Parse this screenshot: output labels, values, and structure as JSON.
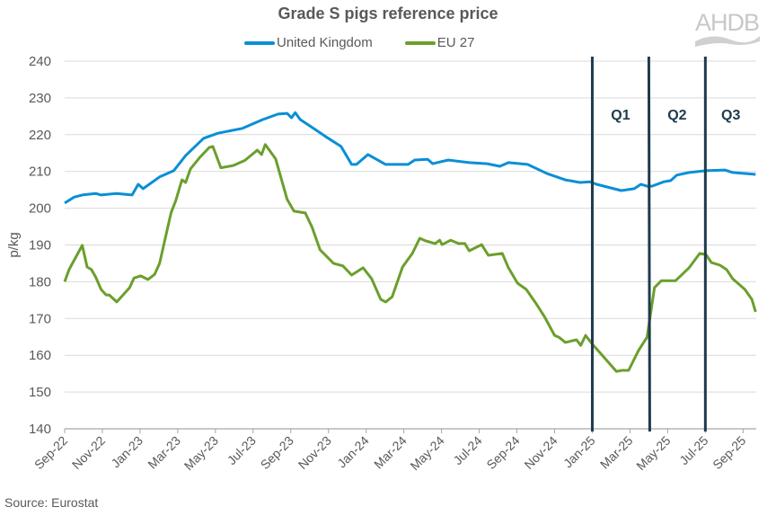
{
  "chart_data": {
    "type": "line",
    "title": "Grade S pigs reference price",
    "ylabel": "p/kg",
    "xlabel": "",
    "ylim": [
      140,
      240
    ],
    "yticks": [
      140,
      150,
      160,
      170,
      180,
      190,
      200,
      210,
      220,
      230,
      240
    ],
    "xlim": [
      "2022-09-01",
      "2025-09-22"
    ],
    "xtick_labels": [
      "Sep-22",
      "Nov-22",
      "Jan-23",
      "Mar-23",
      "May-23",
      "Jul-23",
      "Sep-23",
      "Nov-23",
      "Jan-24",
      "Mar-24",
      "May-24",
      "Jul-24",
      "Sep-24",
      "Nov-24",
      "Jan-25",
      "Mar-25",
      "May-25",
      "Jul-25",
      "Sep-25"
    ],
    "xtick_dates": [
      "2022-09-01",
      "2022-11-01",
      "2023-01-01",
      "2023-03-01",
      "2023-05-01",
      "2023-07-01",
      "2023-09-01",
      "2023-11-01",
      "2024-01-01",
      "2024-03-01",
      "2024-05-01",
      "2024-07-01",
      "2024-09-01",
      "2024-11-01",
      "2025-01-01",
      "2025-03-01",
      "2025-05-01",
      "2025-07-01",
      "2025-09-01"
    ],
    "grid": "horizontal",
    "legend_position": "top",
    "series": [
      {
        "name": "United Kingdom",
        "color": "#0a8fd6",
        "points": [
          [
            "2022-09-01",
            201.4
          ],
          [
            "2022-09-16",
            203
          ],
          [
            "2022-09-29",
            203.6
          ],
          [
            "2022-10-21",
            204
          ],
          [
            "2022-10-30",
            203.6
          ],
          [
            "2022-11-24",
            204
          ],
          [
            "2022-12-19",
            203.6
          ],
          [
            "2022-12-29",
            206.5
          ],
          [
            "2023-01-06",
            205.3
          ],
          [
            "2023-02-02",
            208.5
          ],
          [
            "2023-02-23",
            210.2
          ],
          [
            "2023-03-14",
            214.3
          ],
          [
            "2023-04-12",
            219
          ],
          [
            "2023-05-05",
            220.4
          ],
          [
            "2023-06-14",
            221.7
          ],
          [
            "2023-07-17",
            224.1
          ],
          [
            "2023-08-11",
            225.6
          ],
          [
            "2023-08-26",
            225.8
          ],
          [
            "2023-09-02",
            224.6
          ],
          [
            "2023-09-08",
            226
          ],
          [
            "2023-09-16",
            224.1
          ],
          [
            "2023-10-12",
            221.2
          ],
          [
            "2023-10-27",
            219.5
          ],
          [
            "2023-11-21",
            216.8
          ],
          [
            "2023-12-08",
            211.9
          ],
          [
            "2023-12-16",
            211.9
          ],
          [
            "2024-01-04",
            214.6
          ],
          [
            "2024-02-02",
            211.9
          ],
          [
            "2024-03-08",
            211.9
          ],
          [
            "2024-03-19",
            213.1
          ],
          [
            "2024-04-09",
            213.3
          ],
          [
            "2024-04-17",
            212.1
          ],
          [
            "2024-05-12",
            213.1
          ],
          [
            "2024-06-15",
            212.4
          ],
          [
            "2024-07-14",
            212.1
          ],
          [
            "2024-08-04",
            211.4
          ],
          [
            "2024-08-18",
            212.4
          ],
          [
            "2024-09-18",
            211.9
          ],
          [
            "2024-10-20",
            209.4
          ],
          [
            "2024-11-18",
            207.7
          ],
          [
            "2024-12-12",
            207
          ],
          [
            "2024-12-28",
            207.2
          ],
          [
            "2025-01-08",
            206.5
          ],
          [
            "2025-02-16",
            204.8
          ],
          [
            "2025-03-08",
            205.3
          ],
          [
            "2025-03-19",
            206.5
          ],
          [
            "2025-03-29",
            206
          ],
          [
            "2025-04-06",
            206
          ],
          [
            "2025-04-25",
            207.2
          ],
          [
            "2025-05-06",
            207.5
          ],
          [
            "2025-05-16",
            209
          ],
          [
            "2025-06-05",
            209.7
          ],
          [
            "2025-07-02",
            210.2
          ],
          [
            "2025-08-02",
            210.4
          ],
          [
            "2025-08-15",
            209.7
          ],
          [
            "2025-09-21",
            209.2
          ]
        ]
      },
      {
        "name": "EU 27",
        "color": "#6b9f2c",
        "points": [
          [
            "2022-09-01",
            180
          ],
          [
            "2022-09-08",
            183.3
          ],
          [
            "2022-09-29",
            189.9
          ],
          [
            "2022-10-07",
            184
          ],
          [
            "2022-10-14",
            183.3
          ],
          [
            "2022-10-21",
            181.3
          ],
          [
            "2022-10-30",
            177.9
          ],
          [
            "2022-11-07",
            176.4
          ],
          [
            "2022-11-12",
            176.4
          ],
          [
            "2022-11-24",
            174.5
          ],
          [
            "2022-12-04",
            176.4
          ],
          [
            "2022-12-15",
            178.4
          ],
          [
            "2022-12-22",
            181
          ],
          [
            "2023-01-02",
            181.6
          ],
          [
            "2023-01-14",
            180.6
          ],
          [
            "2023-01-25",
            182
          ],
          [
            "2023-02-02",
            185
          ],
          [
            "2023-02-12",
            193
          ],
          [
            "2023-02-19",
            198.7
          ],
          [
            "2023-02-26",
            202
          ],
          [
            "2023-03-08",
            207.7
          ],
          [
            "2023-03-14",
            207
          ],
          [
            "2023-03-22",
            210.7
          ],
          [
            "2023-04-06",
            213.8
          ],
          [
            "2023-04-21",
            216.5
          ],
          [
            "2023-04-27",
            216.8
          ],
          [
            "2023-05-10",
            211
          ],
          [
            "2023-05-30",
            211.6
          ],
          [
            "2023-06-18",
            213
          ],
          [
            "2023-07-08",
            215.8
          ],
          [
            "2023-07-15",
            214.6
          ],
          [
            "2023-07-21",
            217.3
          ],
          [
            "2023-08-07",
            213.4
          ],
          [
            "2023-08-26",
            202.4
          ],
          [
            "2023-09-06",
            199.2
          ],
          [
            "2023-09-24",
            198.7
          ],
          [
            "2023-10-05",
            194.8
          ],
          [
            "2023-10-18",
            188.7
          ],
          [
            "2023-11-09",
            185
          ],
          [
            "2023-11-24",
            184.3
          ],
          [
            "2023-12-08",
            181.8
          ],
          [
            "2023-12-27",
            183.8
          ],
          [
            "2024-01-10",
            180.8
          ],
          [
            "2024-01-25",
            175.2
          ],
          [
            "2024-02-02",
            174.5
          ],
          [
            "2024-02-12",
            175.9
          ],
          [
            "2024-02-28",
            184
          ],
          [
            "2024-03-15",
            187.7
          ],
          [
            "2024-03-27",
            191.8
          ],
          [
            "2024-04-06",
            191.1
          ],
          [
            "2024-04-21",
            190.4
          ],
          [
            "2024-04-28",
            191.3
          ],
          [
            "2024-05-02",
            190.1
          ],
          [
            "2024-05-16",
            191.3
          ],
          [
            "2024-05-29",
            190.4
          ],
          [
            "2024-06-08",
            190.4
          ],
          [
            "2024-06-15",
            188.4
          ],
          [
            "2024-07-05",
            190.1
          ],
          [
            "2024-07-16",
            187.2
          ],
          [
            "2024-08-08",
            187.7
          ],
          [
            "2024-08-18",
            183.8
          ],
          [
            "2024-09-02",
            179.6
          ],
          [
            "2024-09-16",
            177.9
          ],
          [
            "2024-10-01",
            174.2
          ],
          [
            "2024-10-16",
            170.3
          ],
          [
            "2024-11-01",
            165.4
          ],
          [
            "2024-11-08",
            164.9
          ],
          [
            "2024-11-18",
            163.5
          ],
          [
            "2024-12-06",
            164.2
          ],
          [
            "2024-12-13",
            162.7
          ],
          [
            "2024-12-21",
            165.4
          ],
          [
            "2025-01-01",
            163
          ],
          [
            "2025-01-12",
            161
          ],
          [
            "2025-02-09",
            155.6
          ],
          [
            "2025-02-17",
            155.9
          ],
          [
            "2025-02-27",
            155.9
          ],
          [
            "2025-03-15",
            161.3
          ],
          [
            "2025-03-29",
            164.9
          ],
          [
            "2025-04-10",
            178.4
          ],
          [
            "2025-04-21",
            180.3
          ],
          [
            "2025-05-14",
            180.3
          ],
          [
            "2025-06-05",
            183.8
          ],
          [
            "2025-06-22",
            187.7
          ],
          [
            "2025-07-02",
            187.4
          ],
          [
            "2025-07-11",
            185.2
          ],
          [
            "2025-07-25",
            184.5
          ],
          [
            "2025-08-05",
            183.3
          ],
          [
            "2025-08-15",
            180.8
          ],
          [
            "2025-09-04",
            177.9
          ],
          [
            "2025-09-15",
            175.2
          ],
          [
            "2025-09-21",
            171.8
          ]
        ]
      }
    ],
    "annotations": {
      "quarter_lines": [
        "2025-01-01",
        "2025-04-01",
        "2025-07-01"
      ],
      "quarter_line_color": "#1d3b4c",
      "quarter_labels": [
        {
          "text": "Q1",
          "from": "2025-01-01",
          "to": "2025-04-01"
        },
        {
          "text": "Q2",
          "from": "2025-04-01",
          "to": "2025-07-01"
        },
        {
          "text": "Q3",
          "from": "2025-07-01",
          "to": "2025-09-22"
        }
      ]
    },
    "source": "Source: Eurostat",
    "logo_text": "AHDB"
  }
}
